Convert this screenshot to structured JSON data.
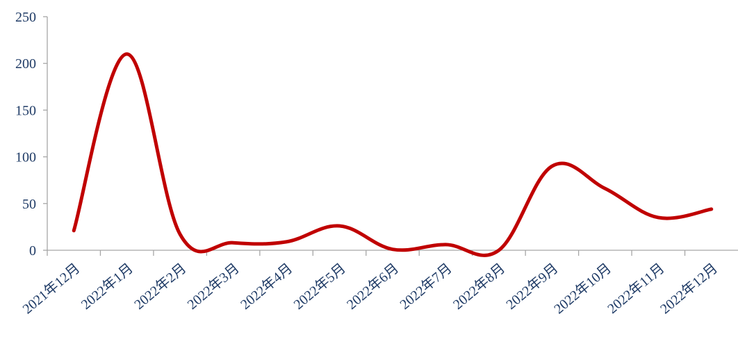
{
  "chart_data": {
    "type": "line",
    "categories": [
      "2021年12月",
      "2022年1月",
      "2022年2月",
      "2022年3月",
      "2022年4月",
      "2022年5月",
      "2022年6月",
      "2022年7月",
      "2022年8月",
      "2022年9月",
      "2022年10月",
      "2022年11月",
      "2022年12月"
    ],
    "series": [
      {
        "name": null,
        "color": "#c00000",
        "values": [
          21,
          210,
          17,
          8,
          9,
          26,
          1,
          6,
          0,
          90,
          66,
          35,
          44
        ]
      }
    ],
    "ylim": [
      0,
      250
    ],
    "yticks": [
      0,
      50,
      100,
      150,
      200,
      250
    ],
    "grid": false
  }
}
